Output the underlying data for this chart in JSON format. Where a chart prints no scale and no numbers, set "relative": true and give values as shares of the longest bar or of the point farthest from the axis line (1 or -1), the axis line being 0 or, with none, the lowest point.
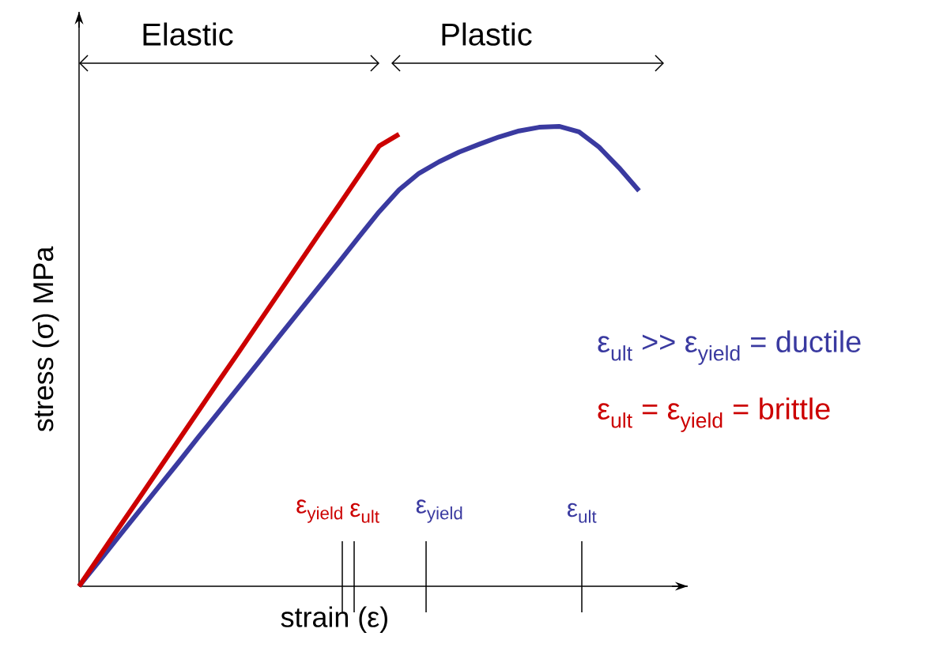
{
  "chart_data": {
    "type": "line",
    "relative": true,
    "xlabel": "strain (ε)",
    "ylabel": "stress (σ) MPa",
    "categories": [
      null,
      null,
      null,
      null,
      null,
      null,
      null,
      null,
      null,
      null,
      null,
      null,
      null,
      null,
      null,
      null,
      null,
      null,
      null,
      null,
      null,
      null,
      null,
      null,
      null,
      null,
      null,
      null,
      null
    ],
    "series": [
      {
        "color": "#3a3aa0",
        "values": [
          0,
          0.054,
          0.109,
          0.163,
          0.217,
          0.271,
          0.326,
          0.38,
          0.434,
          0.488,
          0.543,
          0.597,
          0.651,
          0.705,
          0.76,
          0.814,
          0.862,
          0.898,
          0.923,
          0.944,
          0.961,
          0.977,
          0.99,
          0.998,
          1.0,
          0.988,
          0.955,
          0.91,
          0.86
        ]
      },
      {
        "color": "#cc0000",
        "values": [
          0,
          0.064,
          0.128,
          0.191,
          0.255,
          0.319,
          0.383,
          0.447,
          0.51,
          0.574,
          0.638,
          0.702,
          0.766,
          0.829,
          0.893,
          0.957,
          0.983,
          null,
          null,
          null,
          null,
          null,
          null,
          null,
          null,
          null,
          null,
          null,
          null
        ]
      }
    ],
    "annotations": [
      "Elastic",
      "Plastic",
      "ε$_{yield}$",
      "ε$_{ult}$",
      "ε$_{yield}$",
      "ε$_{ult}$",
      "ε$_{ult}$ >> ε$_{yield}$ = ductile",
      "ε$_{ult}$ = ε$_{yield}$ = brittle"
    ],
    "marker": "none"
  }
}
